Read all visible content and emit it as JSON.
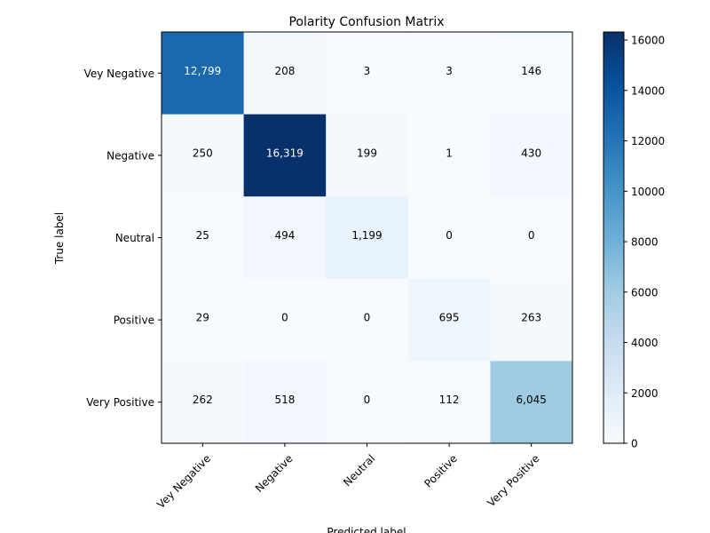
{
  "chart_data": {
    "type": "heatmap",
    "title": "Polarity Confusion Matrix",
    "xlabel": "Predicted label",
    "ylabel": "True label",
    "x_categories": [
      "Vey Negative",
      "Negative",
      "Neutral",
      "Positive",
      "Very Positive"
    ],
    "y_categories": [
      "Vey Negative",
      "Negative",
      "Neutral",
      "Positive",
      "Very Positive"
    ],
    "matrix": [
      [
        12799,
        208,
        3,
        3,
        146
      ],
      [
        250,
        16319,
        199,
        1,
        430
      ],
      [
        25,
        494,
        1199,
        0,
        0
      ],
      [
        29,
        0,
        0,
        695,
        263
      ],
      [
        262,
        518,
        0,
        112,
        6045
      ]
    ],
    "colorbar": {
      "cmap": "Blues",
      "range": [
        0,
        16319
      ],
      "ticks": [
        0,
        2000,
        4000,
        6000,
        8000,
        10000,
        12000,
        14000,
        16000
      ]
    },
    "grid": false
  }
}
